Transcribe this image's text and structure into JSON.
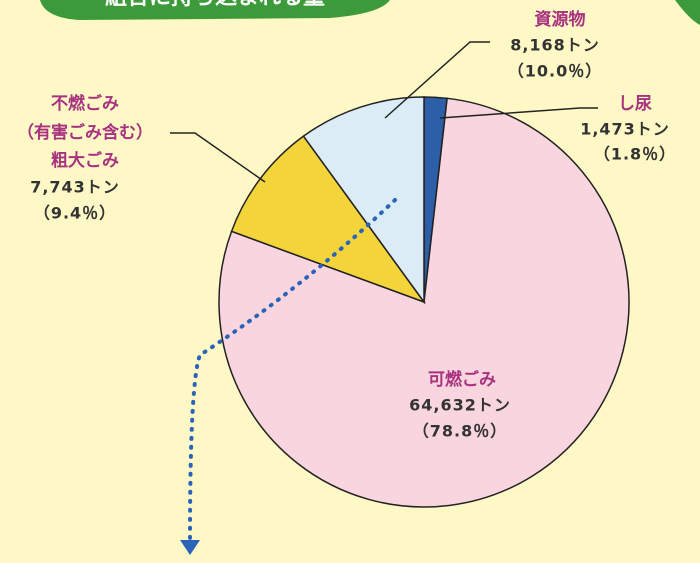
{
  "chart_data": {
    "type": "pie",
    "title": "組合に持ち込まれる量",
    "categories": [
      "し尿",
      "可燃ごみ",
      "不燃ごみ",
      "資源物"
    ],
    "values": [
      1.8,
      78.8,
      9.4,
      10.0
    ],
    "value_labels": [
      "（1.8％）",
      "（78.8％）",
      "（9.4％）",
      "（10.0％）"
    ],
    "amounts": [
      1473,
      64632,
      7743,
      8168
    ],
    "amount_labels": [
      "1,473トン",
      "64,632トン",
      "7,743トン",
      "8,168トン"
    ],
    "annotations": [
      "（有害ごみ含む）",
      "粗大ごみ"
    ],
    "colors": [
      "#2d5fa8",
      "#f9d5df",
      "#f3d53b",
      "#dcecf6"
    ]
  }
}
